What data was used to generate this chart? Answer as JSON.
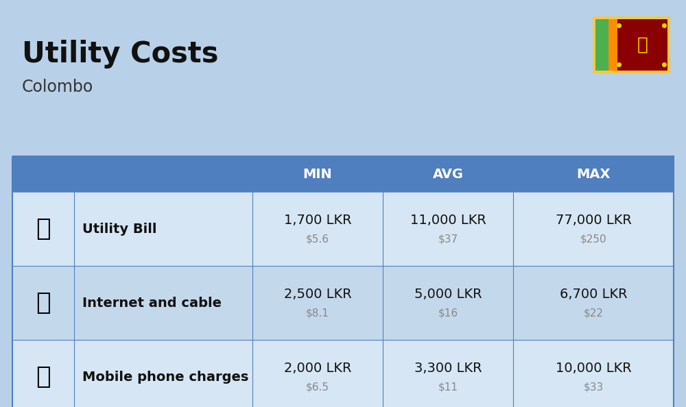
{
  "title": "Utility Costs",
  "subtitle": "Colombo",
  "background_color": "#b8d0e8",
  "header_bg_color": "#4f7fbf",
  "header_text_color": "#ffffff",
  "row_bg_color_1": "#d6e6f4",
  "row_bg_color_2": "#c4d8ec",
  "table_border_color": "#4f7fbf",
  "rows": [
    {
      "label": "Utility Bill",
      "min_lkr": "1,700 LKR",
      "min_usd": "$5.6",
      "avg_lkr": "11,000 LKR",
      "avg_usd": "$37",
      "max_lkr": "77,000 LKR",
      "max_usd": "$250",
      "icon": "utility"
    },
    {
      "label": "Internet and cable",
      "min_lkr": "2,500 LKR",
      "min_usd": "$8.1",
      "avg_lkr": "5,000 LKR",
      "avg_usd": "$16",
      "max_lkr": "6,700 LKR",
      "max_usd": "$22",
      "icon": "internet"
    },
    {
      "label": "Mobile phone charges",
      "min_lkr": "2,000 LKR",
      "min_usd": "$6.5",
      "avg_lkr": "3,300 LKR",
      "avg_usd": "$11",
      "max_lkr": "10,000 LKR",
      "max_usd": "$33",
      "icon": "mobile"
    }
  ],
  "title_fontsize": 30,
  "subtitle_fontsize": 17,
  "header_fontsize": 14,
  "label_fontsize": 14,
  "value_fontsize": 14,
  "usd_fontsize": 11
}
